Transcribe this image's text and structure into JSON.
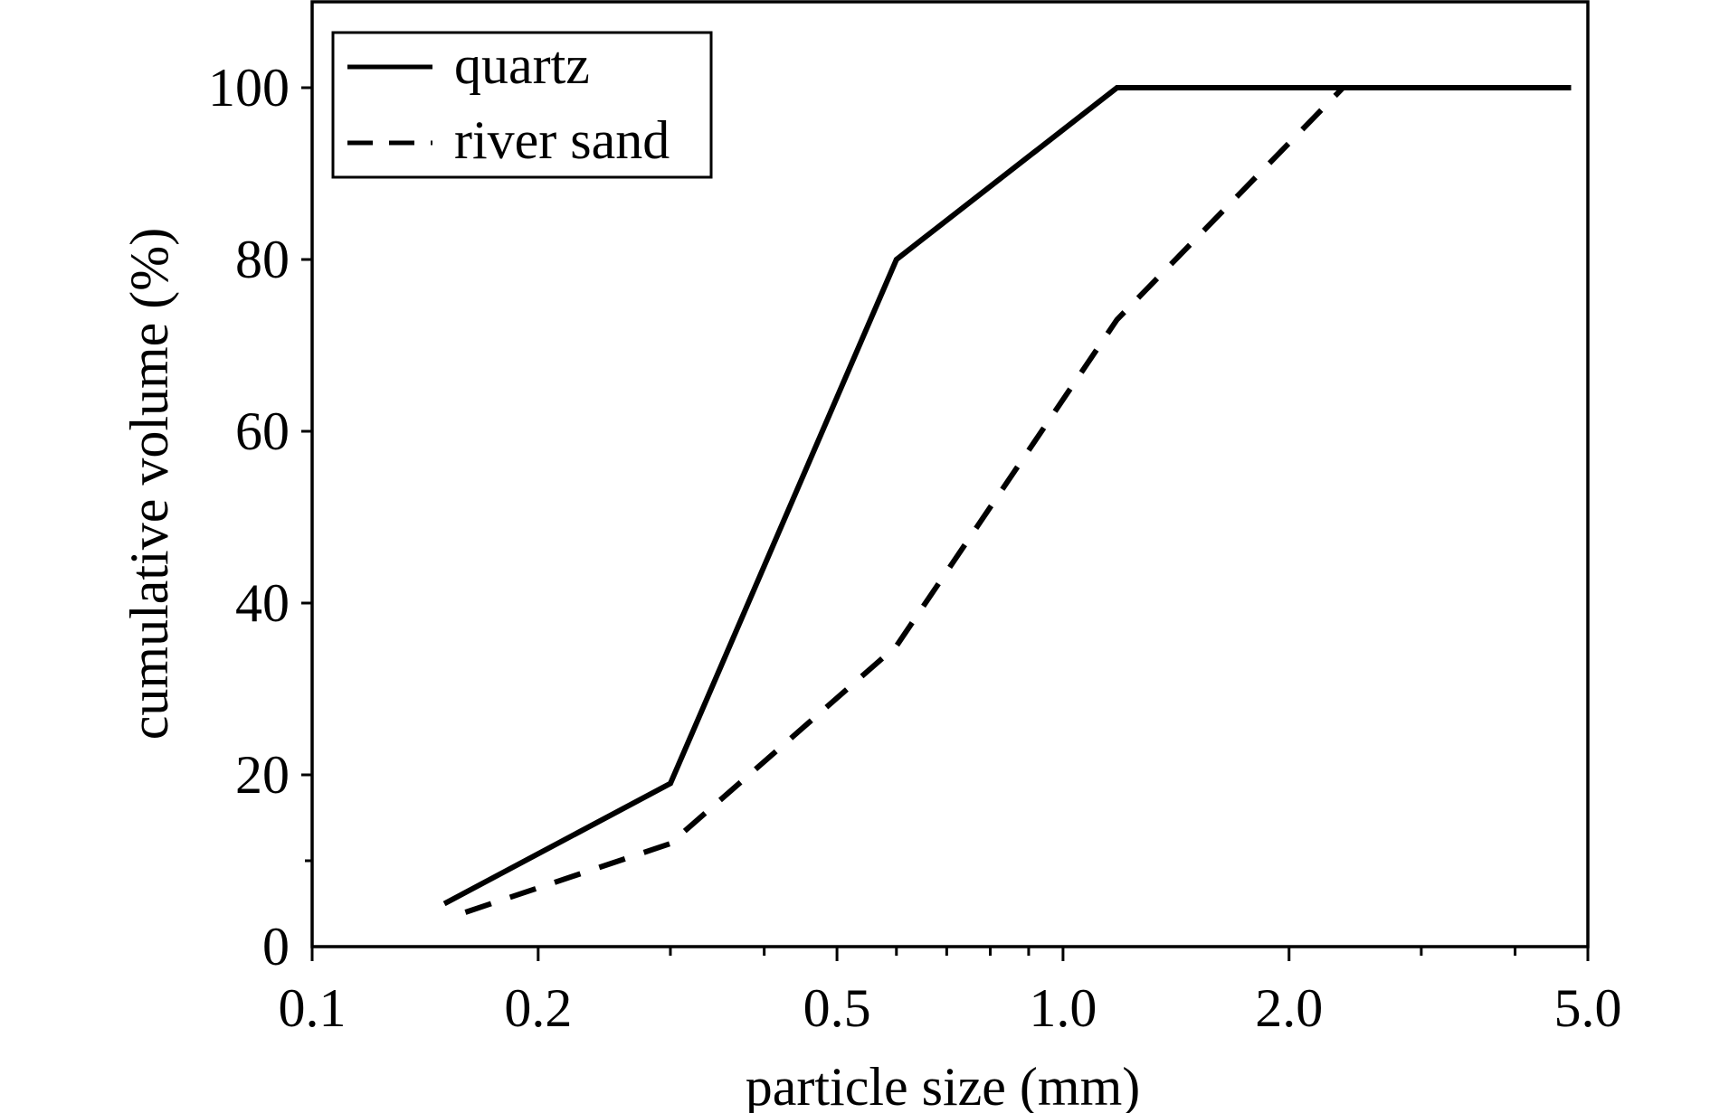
{
  "chart_data": {
    "type": "line",
    "xlabel": "particle size (mm)",
    "ylabel": "cumulative volume (%)",
    "x_scale": "log",
    "xlim": [
      0.1,
      5.0
    ],
    "ylim": [
      0,
      110
    ],
    "x_ticks": [
      {
        "value": 0.1,
        "label": "0.1"
      },
      {
        "value": 0.2,
        "label": "0.2"
      },
      {
        "value": 0.5,
        "label": "0.5"
      },
      {
        "value": 1.0,
        "label": "1.0"
      },
      {
        "value": 2.0,
        "label": "2.0"
      },
      {
        "value": 5.0,
        "label": "5.0"
      }
    ],
    "x_minor_ticks": [
      0.3,
      0.4,
      0.6,
      0.7,
      0.8,
      0.9,
      3.0,
      4.0
    ],
    "y_ticks": [
      {
        "value": 0,
        "label": "0"
      },
      {
        "value": 20,
        "label": "20"
      },
      {
        "value": 40,
        "label": "40"
      },
      {
        "value": 60,
        "label": "60"
      },
      {
        "value": 80,
        "label": "80"
      },
      {
        "value": 100,
        "label": "100"
      }
    ],
    "y_minor_ticks": [
      10
    ],
    "grid": false,
    "legend_position": "top-left",
    "series": [
      {
        "name": "quartz",
        "style": "solid",
        "color": "#000000",
        "x": [
          0.15,
          0.3,
          0.6,
          1.18,
          2.36,
          4.75
        ],
        "y": [
          5,
          19,
          80,
          100,
          100,
          100
        ]
      },
      {
        "name": "river sand",
        "style": "dashed",
        "color": "#000000",
        "x": [
          0.16,
          0.3,
          0.6,
          1.18,
          2.36,
          4.75
        ],
        "y": [
          4,
          12,
          35,
          73,
          100,
          100
        ]
      }
    ]
  }
}
